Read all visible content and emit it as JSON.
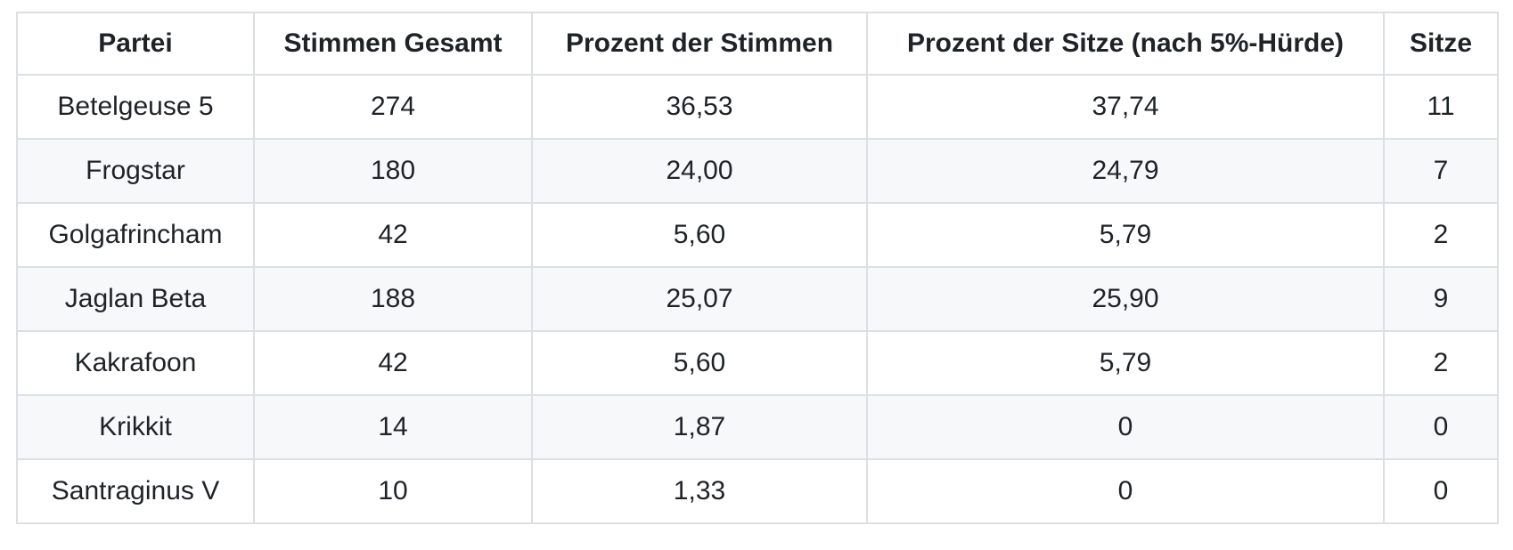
{
  "table": {
    "columns": [
      {
        "label": "Partei"
      },
      {
        "label": "Stimmen Gesamt"
      },
      {
        "label": "Prozent der Stimmen"
      },
      {
        "label": "Prozent der Sitze (nach 5%-Hürde)"
      },
      {
        "label": "Sitze"
      }
    ],
    "rows": [
      {
        "partei": "Betelgeuse 5",
        "stimmen_gesamt": "274",
        "prozent_der_stimmen": "36,53",
        "prozent_der_sitze": "37,74",
        "sitze": "11"
      },
      {
        "partei": "Frogstar",
        "stimmen_gesamt": "180",
        "prozent_der_stimmen": "24,00",
        "prozent_der_sitze": "24,79",
        "sitze": "7"
      },
      {
        "partei": "Golgafrincham",
        "stimmen_gesamt": "42",
        "prozent_der_stimmen": "5,60",
        "prozent_der_sitze": "5,79",
        "sitze": "2"
      },
      {
        "partei": "Jaglan Beta",
        "stimmen_gesamt": "188",
        "prozent_der_stimmen": "25,07",
        "prozent_der_sitze": "25,90",
        "sitze": "9"
      },
      {
        "partei": "Kakrafoon",
        "stimmen_gesamt": "42",
        "prozent_der_stimmen": "5,60",
        "prozent_der_sitze": "5,79",
        "sitze": "2"
      },
      {
        "partei": "Krikkit",
        "stimmen_gesamt": "14",
        "prozent_der_stimmen": "1,87",
        "prozent_der_sitze": "0",
        "sitze": "0"
      },
      {
        "partei": "Santraginus V",
        "stimmen_gesamt": "10",
        "prozent_der_stimmen": "1,33",
        "prozent_der_sitze": "0",
        "sitze": "0"
      }
    ],
    "row_field_order": [
      "partei",
      "stimmen_gesamt",
      "prozent_der_stimmen",
      "prozent_der_sitze",
      "sitze"
    ],
    "colors": {
      "stripe_row_background": "#f6f8fa",
      "border": "#dcdfe4",
      "text": "#1f2328",
      "page_background": "#ffffff"
    }
  }
}
